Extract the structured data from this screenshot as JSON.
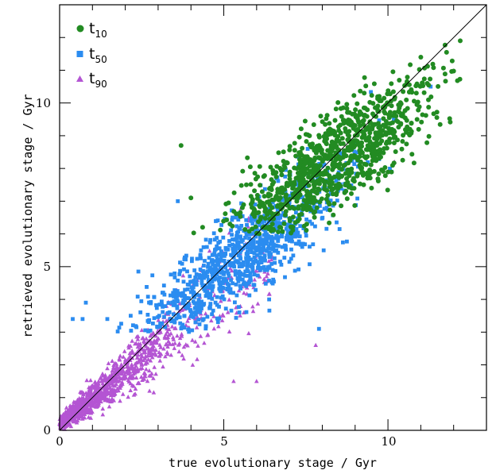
{
  "chart_data": {
    "type": "scatter",
    "xlabel": "true evolutionary stage / Gyr",
    "ylabel": "retrieved evolutionary stage / Gyr",
    "xlim": [
      0,
      13
    ],
    "ylim": [
      0,
      13
    ],
    "x_ticks": [
      0,
      5,
      10
    ],
    "y_ticks": [
      0,
      5,
      10
    ],
    "x_tick_labels": [
      "0",
      "5",
      "10"
    ],
    "y_tick_labels": [
      "0",
      "5",
      "10"
    ],
    "minor_tick_step": 1,
    "grid": false,
    "legend_position": "top-left",
    "reference_line": {
      "x": [
        0,
        13
      ],
      "y": [
        0,
        13
      ],
      "color": "#000000"
    },
    "series": [
      {
        "name": "t10",
        "label_main": "t",
        "label_sub": "10",
        "marker": "circle",
        "color": "#228b22",
        "n_points": 950,
        "x_range": [
          3.7,
          12.2
        ],
        "y_range": [
          6.0,
          11.9
        ],
        "anchor_points": [
          [
            3.7,
            8.7
          ],
          [
            12.2,
            11.9
          ],
          [
            11.0,
            11.4
          ],
          [
            4.0,
            7.1
          ],
          [
            9.5,
            7.4
          ],
          [
            7.5,
            8.2
          ],
          [
            9.0,
            9.0
          ]
        ]
      },
      {
        "name": "t50",
        "label_main": "t",
        "label_sub": "50",
        "marker": "square",
        "color": "#2b8cf0",
        "n_points": 950,
        "x_range": [
          0.4,
          11.3
        ],
        "y_range": [
          3.0,
          10.5
        ],
        "anchor_points": [
          [
            0.4,
            3.4
          ],
          [
            0.7,
            3.4
          ],
          [
            0.8,
            3.9
          ],
          [
            7.9,
            3.1
          ],
          [
            11.3,
            10.5
          ],
          [
            3.6,
            7.0
          ],
          [
            5.5,
            5.3
          ]
        ]
      },
      {
        "name": "t90",
        "label_main": "t",
        "label_sub": "90",
        "marker": "triangle",
        "color": "#b455d3",
        "n_points": 1100,
        "x_range": [
          0.0,
          10.2
        ],
        "y_range": [
          0.0,
          8.2
        ],
        "anchor_points": [
          [
            0.0,
            0.2
          ],
          [
            7.8,
            2.6
          ],
          [
            6.0,
            1.5
          ],
          [
            5.3,
            1.5
          ],
          [
            10.2,
            8.2
          ],
          [
            2.5,
            2.0
          ],
          [
            1.2,
            1.0
          ]
        ]
      }
    ]
  }
}
